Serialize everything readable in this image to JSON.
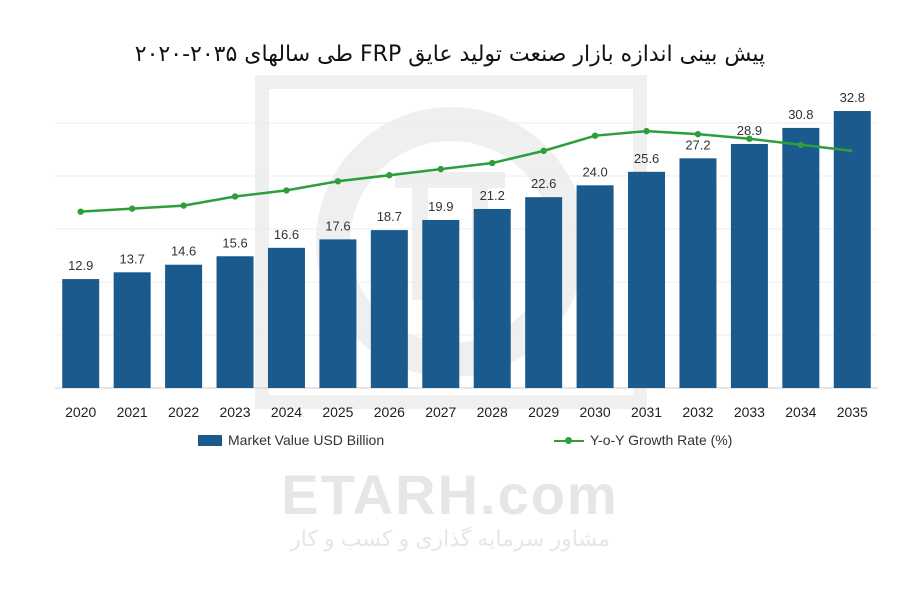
{
  "watermark": {
    "text": "ETARH.com",
    "subtext": "مشاور سرمایه گذاری و کسب و کار"
  },
  "chart_data": {
    "type": "bar",
    "title": "پیش بینی اندازه بازار صنعت تولید عایق FRP طی سالهای ۲۰۳۵-۲۰۲۰",
    "categories": [
      "2020",
      "2021",
      "2022",
      "2023",
      "2024",
      "2025",
      "2026",
      "2027",
      "2028",
      "2029",
      "2030",
      "2031",
      "2032",
      "2033",
      "2034",
      "2035"
    ],
    "series": [
      {
        "name": "Market Value USD Billion",
        "kind": "bar",
        "color": "#1b5a8c",
        "values": [
          12.9,
          13.7,
          14.6,
          15.6,
          16.6,
          17.6,
          18.7,
          19.9,
          21.2,
          22.6,
          24.0,
          25.6,
          27.2,
          28.9,
          30.8,
          32.8
        ],
        "labels": [
          "12.9",
          "13.7",
          "14.6",
          "15.6",
          "16.6",
          "17.6",
          "18.7",
          "19.9",
          "21.2",
          "22.6",
          "24.0",
          "25.6",
          "27.2",
          "28.9",
          "30.8",
          "32.8"
        ]
      },
      {
        "name": "Y-o-Y Growth Rate (%)",
        "kind": "line",
        "color": "#2e9e3c",
        "values": [
          5.8,
          5.9,
          6.0,
          6.3,
          6.5,
          6.8,
          7.0,
          7.2,
          7.4,
          7.8,
          8.3,
          8.45,
          8.35,
          8.2,
          8.0,
          7.8
        ]
      }
    ],
    "ylim": [
      0,
      36
    ],
    "y2lim": [
      0,
      10
    ],
    "grid": true,
    "legend": "bottom"
  }
}
